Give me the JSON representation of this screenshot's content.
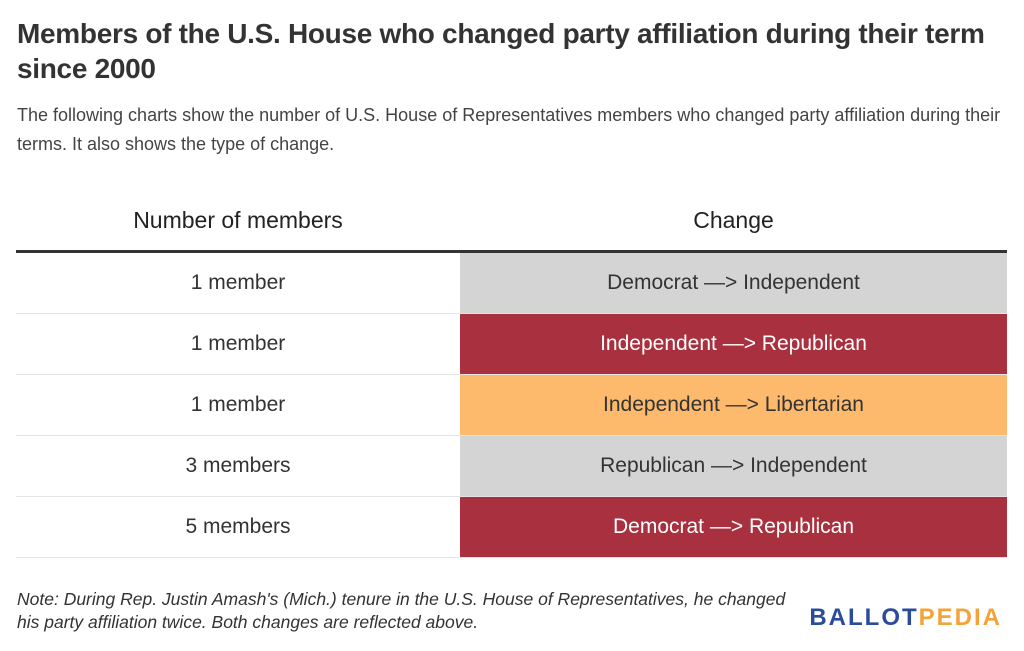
{
  "header": {
    "title": "Members of the U.S. House who changed party affiliation during their term since 2000",
    "subtitle": "The following charts show the number of U.S. House of Representatives members who changed party affiliation during their terms. It also shows the type of change."
  },
  "table": {
    "columns": [
      "Number of members",
      "Change"
    ],
    "rows": [
      {
        "count": "1 member",
        "change": "Democrat —> Independent",
        "color": "#d4d4d4"
      },
      {
        "count": "1 member",
        "change": "Independent —> Republican",
        "color": "#a8303f"
      },
      {
        "count": "1 member",
        "change": "Independent —> Libertarian",
        "color": "#fdb96c"
      },
      {
        "count": "3 members",
        "change": "Republican —> Independent",
        "color": "#d4d4d4"
      },
      {
        "count": "5 members",
        "change": "Democrat —> Republican",
        "color": "#a8303f"
      }
    ]
  },
  "note": "Note: During Rep. Justin Amash's (Mich.) tenure in the U.S. House of Representatives, he changed his party affiliation twice. Both changes are reflected above.",
  "logo": {
    "first": "BALLOT",
    "second": "PEDIA"
  }
}
